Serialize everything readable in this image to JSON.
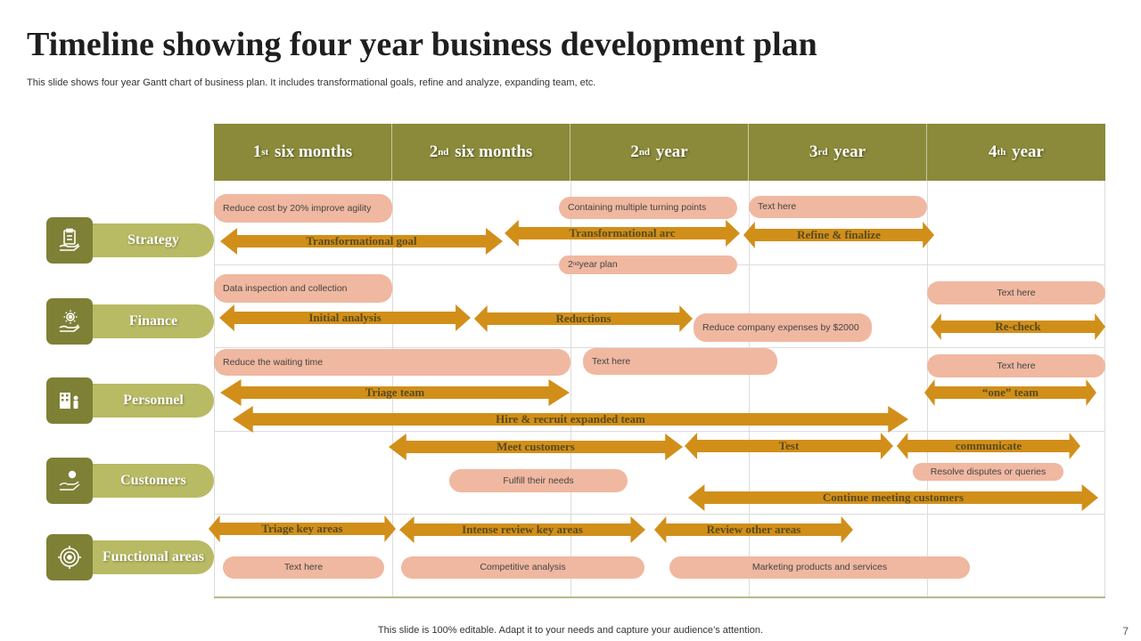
{
  "title": "Timeline showing four year business development plan",
  "subtitle": "This slide shows four year Gantt chart of business plan. It includes transformational goals, refine and analyze,  expanding team, etc.",
  "footer": "This slide is 100% editable. Adapt it to your needs and capture your audience’s attention.",
  "page_number": "7",
  "colors": {
    "header": "#8a8a3a",
    "icon_box": "#7e8036",
    "label_pill": "#b8bb63",
    "arrow": "#d18f1a",
    "note": "#f0b8a0"
  },
  "columns": [
    {
      "num": "1",
      "sup": "st",
      "text": "six months"
    },
    {
      "num": "2",
      "sup": "nd",
      "text": "six months"
    },
    {
      "num": "2",
      "sup": "nd",
      "text": "year"
    },
    {
      "num": "3",
      "sup": "rd",
      "text": "year"
    },
    {
      "num": "4",
      "sup": "th",
      "text": "year"
    }
  ],
  "rows": [
    {
      "label": "Strategy",
      "icon": "clipboard-hand-icon"
    },
    {
      "label": "Finance",
      "icon": "gear-hand-icon"
    },
    {
      "label": "Personnel",
      "icon": "people-building-icon"
    },
    {
      "label": "Customers",
      "icon": "hand-coin-icon"
    },
    {
      "label": "Functional areas",
      "icon": "target-icon"
    }
  ],
  "arrows": {
    "transformational_goal": "Transformational goal",
    "transformational_arc": "Transformational arc",
    "refine_finalize": "Refine & finalize",
    "initial_analysis": "Initial analysis",
    "reductions": "Reductions",
    "re_check": "Re-check",
    "triage_team": "Triage team",
    "one_team": "“one” team",
    "hire_recruit": "Hire & recruit expanded team",
    "meet_customers": "Meet customers",
    "test": "Test",
    "communicate": "communicate",
    "continue_meeting": "Continue meeting customers",
    "triage_key_areas": "Triage key areas",
    "intense_review": "Intense review key areas",
    "review_other": "Review other areas"
  },
  "notes": {
    "reduce_cost": "Reduce cost by 20% improve agility",
    "turning_points": "Containing multiple  turning points",
    "strategy_text_here": "Text here",
    "year_plan_num": "2",
    "year_plan_sup": "nd",
    "year_plan_text": " year plan",
    "data_inspection": "Data inspection and collection",
    "finance_text_here": "Text here",
    "reduce_expenses": "Reduce company expenses by $2000",
    "reduce_waiting": "Reduce the waiting time",
    "personnel_text_here_1": "Text here",
    "personnel_text_here_2": "Text here",
    "fulfill_needs": "Fulfill their needs",
    "resolve_disputes": "Resolve disputes or queries",
    "functional_text_here": "Text here",
    "competitive_analysis": "Competitive analysis",
    "marketing": "Marketing products and services"
  }
}
